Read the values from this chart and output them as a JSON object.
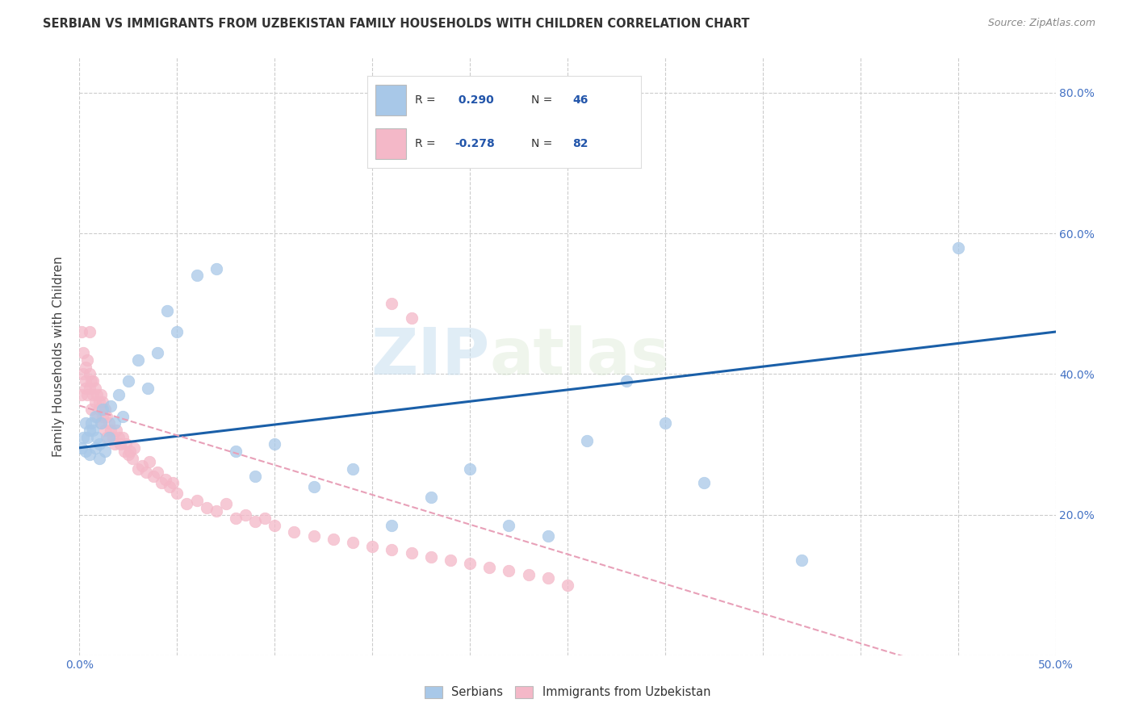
{
  "title": "SERBIAN VS IMMIGRANTS FROM UZBEKISTAN FAMILY HOUSEHOLDS WITH CHILDREN CORRELATION CHART",
  "source": "Source: ZipAtlas.com",
  "ylabel": "Family Households with Children",
  "xlim": [
    0.0,
    0.5
  ],
  "ylim": [
    0.0,
    0.85
  ],
  "xticks": [
    0.0,
    0.05,
    0.1,
    0.15,
    0.2,
    0.25,
    0.3,
    0.35,
    0.4,
    0.45,
    0.5
  ],
  "ytick_values": [
    0.0,
    0.2,
    0.4,
    0.6,
    0.8
  ],
  "color_blue": "#a8c8e8",
  "color_pink": "#f4b8c8",
  "color_blue_line": "#1a5fa8",
  "color_pink_line": "#e8a0b8",
  "watermark_zip": "ZIP",
  "watermark_atlas": "atlas",
  "legend_blue_r": "R =  0.290",
  "legend_blue_n": "N = 46",
  "legend_pink_r": "R = -0.278",
  "legend_pink_n": "N = 82",
  "serbian_x": [
    0.001,
    0.002,
    0.003,
    0.003,
    0.004,
    0.005,
    0.005,
    0.006,
    0.007,
    0.008,
    0.008,
    0.009,
    0.01,
    0.01,
    0.011,
    0.012,
    0.013,
    0.015,
    0.016,
    0.018,
    0.02,
    0.022,
    0.025,
    0.03,
    0.035,
    0.04,
    0.045,
    0.05,
    0.06,
    0.07,
    0.08,
    0.09,
    0.1,
    0.12,
    0.14,
    0.16,
    0.18,
    0.2,
    0.22,
    0.24,
    0.26,
    0.28,
    0.3,
    0.32,
    0.37,
    0.45
  ],
  "serbian_y": [
    0.295,
    0.31,
    0.33,
    0.29,
    0.31,
    0.32,
    0.285,
    0.33,
    0.32,
    0.295,
    0.34,
    0.31,
    0.3,
    0.28,
    0.33,
    0.35,
    0.29,
    0.31,
    0.355,
    0.33,
    0.37,
    0.34,
    0.39,
    0.42,
    0.38,
    0.43,
    0.49,
    0.46,
    0.54,
    0.55,
    0.29,
    0.255,
    0.3,
    0.24,
    0.265,
    0.185,
    0.225,
    0.265,
    0.185,
    0.17,
    0.305,
    0.39,
    0.33,
    0.245,
    0.135,
    0.58
  ],
  "uzbek_x": [
    0.001,
    0.001,
    0.002,
    0.002,
    0.003,
    0.003,
    0.003,
    0.004,
    0.004,
    0.005,
    0.005,
    0.005,
    0.006,
    0.006,
    0.007,
    0.007,
    0.008,
    0.008,
    0.009,
    0.009,
    0.01,
    0.01,
    0.011,
    0.011,
    0.012,
    0.012,
    0.013,
    0.013,
    0.014,
    0.014,
    0.015,
    0.016,
    0.017,
    0.018,
    0.019,
    0.02,
    0.021,
    0.022,
    0.023,
    0.024,
    0.025,
    0.026,
    0.027,
    0.028,
    0.03,
    0.032,
    0.034,
    0.036,
    0.038,
    0.04,
    0.042,
    0.044,
    0.046,
    0.048,
    0.05,
    0.055,
    0.06,
    0.065,
    0.07,
    0.075,
    0.08,
    0.085,
    0.09,
    0.095,
    0.1,
    0.11,
    0.12,
    0.13,
    0.14,
    0.15,
    0.16,
    0.17,
    0.18,
    0.19,
    0.2,
    0.21,
    0.22,
    0.23,
    0.24,
    0.25,
    0.16,
    0.17
  ],
  "uzbek_y": [
    0.37,
    0.46,
    0.4,
    0.43,
    0.41,
    0.39,
    0.38,
    0.37,
    0.42,
    0.4,
    0.38,
    0.46,
    0.39,
    0.35,
    0.37,
    0.39,
    0.36,
    0.38,
    0.34,
    0.37,
    0.36,
    0.35,
    0.37,
    0.33,
    0.36,
    0.34,
    0.35,
    0.32,
    0.34,
    0.31,
    0.33,
    0.32,
    0.31,
    0.3,
    0.32,
    0.31,
    0.3,
    0.31,
    0.29,
    0.3,
    0.285,
    0.29,
    0.28,
    0.295,
    0.265,
    0.27,
    0.26,
    0.275,
    0.255,
    0.26,
    0.245,
    0.25,
    0.24,
    0.245,
    0.23,
    0.215,
    0.22,
    0.21,
    0.205,
    0.215,
    0.195,
    0.2,
    0.19,
    0.195,
    0.185,
    0.175,
    0.17,
    0.165,
    0.16,
    0.155,
    0.15,
    0.145,
    0.14,
    0.135,
    0.13,
    0.125,
    0.12,
    0.115,
    0.11,
    0.1,
    0.5,
    0.48
  ]
}
